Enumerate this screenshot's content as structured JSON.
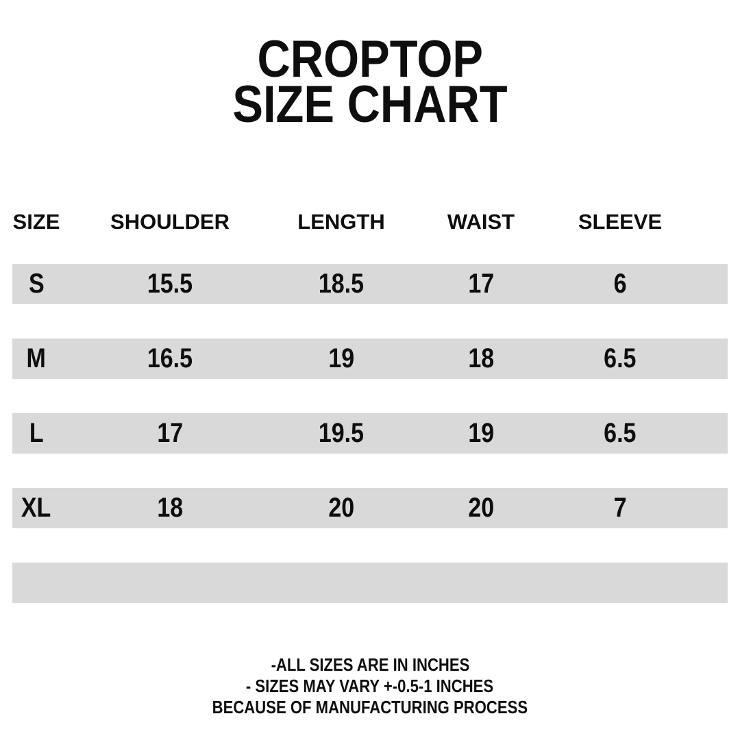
{
  "title": {
    "line1": "CROPTOP",
    "line2": "SIZE CHART"
  },
  "table": {
    "headers": [
      "SIZE",
      "SHOULDER",
      "LENGTH",
      "WAIST",
      "SLEEVE"
    ],
    "rows": [
      [
        "S",
        "15.5",
        "18.5",
        "17",
        "6"
      ],
      [
        "M",
        "16.5",
        "19",
        "18",
        "6.5"
      ],
      [
        "L",
        "17",
        "19.5",
        "19",
        "6.5"
      ],
      [
        "XL",
        "18",
        "20",
        "20",
        "7"
      ],
      [
        "",
        "",
        "",
        "",
        ""
      ]
    ]
  },
  "notes": [
    "-ALL SIZES ARE IN INCHES",
    "- SIZES MAY VARY +-0.5-1 INCHES",
    "BECAUSE OF MANUFACTURING PROCESS"
  ],
  "colors": {
    "text": "#0e0e0e",
    "row_background": "#d9d9d9",
    "page_background": "#ffffff"
  },
  "chart_data": {
    "type": "table",
    "title": "CROPTOP SIZE CHART",
    "columns": [
      "SIZE",
      "SHOULDER",
      "LENGTH",
      "WAIST",
      "SLEEVE"
    ],
    "rows": [
      [
        "S",
        15.5,
        18.5,
        17,
        6
      ],
      [
        "M",
        16.5,
        19,
        18,
        6.5
      ],
      [
        "L",
        17,
        19.5,
        19,
        6.5
      ],
      [
        "XL",
        18,
        20,
        20,
        7
      ]
    ],
    "units": "inches",
    "footnotes": [
      "-ALL SIZES ARE IN INCHES",
      "- SIZES MAY VARY +-0.5-1 INCHES",
      "BECAUSE OF MANUFACTURING PROCESS"
    ]
  }
}
